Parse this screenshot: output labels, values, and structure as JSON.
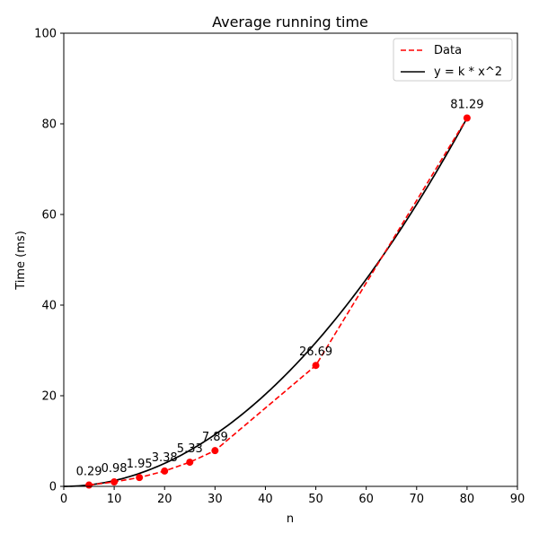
{
  "chart_data": {
    "type": "line",
    "title": "Average running time",
    "xlabel": "n",
    "ylabel": "Time (ms)",
    "xlim": [
      0,
      90
    ],
    "ylim": [
      0,
      100
    ],
    "xticks": [
      0,
      10,
      20,
      30,
      40,
      50,
      60,
      70,
      80,
      90
    ],
    "yticks": [
      0,
      20,
      40,
      60,
      80,
      100
    ],
    "grid": false,
    "legend_position": "top-right",
    "series": [
      {
        "name": "Data",
        "style": "dashed",
        "color": "#ff0000",
        "marker": "circle",
        "x": [
          5,
          10,
          15,
          20,
          25,
          30,
          50,
          80
        ],
        "y": [
          0.29,
          0.98,
          1.95,
          3.38,
          5.33,
          7.89,
          26.69,
          81.29
        ],
        "data_labels": [
          "0.29",
          "0.98",
          "1.95",
          "3.38",
          "5.33",
          "7.89",
          "26.69",
          "81.29"
        ]
      },
      {
        "name": "y = k * x^2",
        "style": "solid",
        "color": "#000000",
        "k": 0.0127,
        "x_range": [
          0,
          80
        ]
      }
    ]
  }
}
